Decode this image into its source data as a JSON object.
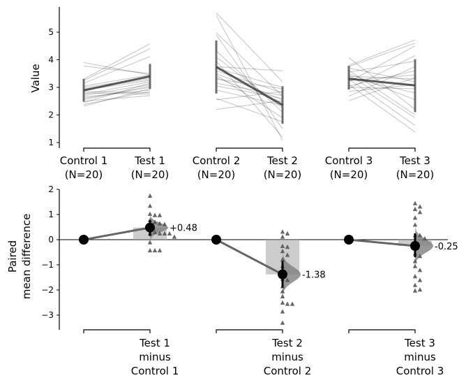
{
  "chart_data": [
    {
      "type": "line",
      "panel": "slopegraph",
      "title": "",
      "ylabel": "Value",
      "ylim": [
        0.85,
        5.9
      ],
      "yticks": [
        "1",
        "2",
        "3",
        "4",
        "5"
      ],
      "ytick_values": [
        1,
        2,
        3,
        4,
        5
      ],
      "groups": [
        {
          "control_label": "Control 1\n(N=20)",
          "test_label": "Test 1\n(N=20)",
          "control_name": "Control 1",
          "test_name": "Test 1",
          "n_label": "(N=20)",
          "control_mean": 2.89,
          "test_mean": 3.4,
          "control_ci": [
            2.48,
            3.31
          ],
          "test_ci": [
            2.94,
            3.85
          ],
          "pairs": [
            [
              3.9,
              3.45
            ],
            [
              3.77,
              3.5
            ],
            [
              3.3,
              4.58
            ],
            [
              3.25,
              4.4
            ],
            [
              3.15,
              4.12
            ],
            [
              3.05,
              3.45
            ],
            [
              3.0,
              3.35
            ],
            [
              2.95,
              3.3
            ],
            [
              2.9,
              3.25
            ],
            [
              2.85,
              2.8
            ],
            [
              2.8,
              2.75
            ],
            [
              2.75,
              3.2
            ],
            [
              2.7,
              3.1
            ],
            [
              2.65,
              2.9
            ],
            [
              2.6,
              3.0
            ],
            [
              2.55,
              3.05
            ],
            [
              2.5,
              2.7
            ],
            [
              2.45,
              3.15
            ],
            [
              2.38,
              2.85
            ],
            [
              2.32,
              2.95
            ]
          ]
        },
        {
          "control_label": "Control 2\n(N=20)",
          "test_label": "Test 2\n(N=20)",
          "control_name": "Control 2",
          "test_name": "Test 2",
          "n_label": "(N=20)",
          "control_mean": 3.74,
          "test_mean": 2.36,
          "control_ci": [
            2.78,
            4.7
          ],
          "test_ci": [
            1.68,
            3.04
          ],
          "pairs": [
            [
              5.7,
              3.2
            ],
            [
              5.62,
              1.08
            ],
            [
              4.98,
              2.68
            ],
            [
              4.9,
              1.5
            ],
            [
              4.32,
              2.1
            ],
            [
              4.1,
              2.25
            ],
            [
              3.95,
              1.2
            ],
            [
              3.75,
              3.6
            ],
            [
              3.7,
              3.0
            ],
            [
              3.6,
              2.8
            ],
            [
              3.5,
              2.55
            ],
            [
              3.45,
              1.9
            ],
            [
              3.35,
              2.45
            ],
            [
              3.3,
              2.95
            ],
            [
              3.15,
              2.7
            ],
            [
              3.05,
              2.6
            ],
            [
              2.9,
              2.35
            ],
            [
              2.6,
              1.75
            ],
            [
              2.55,
              2.85
            ],
            [
              2.2,
              2.52
            ]
          ]
        },
        {
          "control_label": "Control 3\n(N=20)",
          "test_label": "Test 3\n(N=20)",
          "control_name": "Control 3",
          "test_name": "Test 3",
          "n_label": "(N=20)",
          "control_mean": 3.31,
          "test_mean": 3.07,
          "control_ci": [
            2.92,
            3.78
          ],
          "test_ci": [
            2.1,
            4.02
          ],
          "pairs": [
            [
              4.08,
              2.2
            ],
            [
              3.8,
              4.72
            ],
            [
              3.75,
              4.6
            ],
            [
              3.7,
              3.2
            ],
            [
              3.62,
              2.0
            ],
            [
              3.55,
              3.95
            ],
            [
              3.5,
              2.55
            ],
            [
              3.45,
              1.9
            ],
            [
              3.4,
              3.3
            ],
            [
              3.35,
              2.8
            ],
            [
              3.3,
              1.62
            ],
            [
              3.25,
              3.45
            ],
            [
              3.2,
              4.5
            ],
            [
              3.1,
              1.38
            ],
            [
              3.05,
              3.6
            ],
            [
              3.0,
              2.95
            ],
            [
              2.95,
              4.15
            ],
            [
              2.85,
              3.1
            ],
            [
              2.68,
              3.75
            ],
            [
              2.52,
              3.35
            ]
          ]
        }
      ]
    },
    {
      "type": "scatter",
      "panel": "paired-mean-difference",
      "ylabel": "Paired\nmean difference",
      "ylabel_lines": [
        "Paired",
        "mean difference"
      ],
      "ylim": [
        -3.6,
        2.0
      ],
      "yticks": [
        "2",
        "1",
        "0",
        "−1",
        "−2",
        "−3"
      ],
      "ytick_values": [
        2,
        1,
        0,
        -1,
        -2,
        -3
      ],
      "groups": [
        {
          "label_lines": [
            "Test 1",
            "minus",
            "Control 1"
          ],
          "mean_diff": 0.48,
          "mean_diff_label": "+0.48",
          "ci": [
            0.15,
            0.78
          ],
          "bar_bottom": 0.0,
          "diffs": [
            1.75,
            1.35,
            0.98,
            0.98,
            1.03,
            0.78,
            0.65,
            0.62,
            0.7,
            0.45,
            0.25,
            0.25,
            0.25,
            0.25,
            0.3,
            0.12,
            -0.1,
            -0.42,
            -0.42,
            -0.42
          ]
        },
        {
          "label_lines": [
            "Test 2",
            "minus",
            "Control 2"
          ],
          "mean_diff": -1.38,
          "mean_diff_label": "-1.38",
          "ci": [
            -1.9,
            -0.85
          ],
          "bar_bottom": 0.0,
          "diffs": [
            0.32,
            0.25,
            0.12,
            -0.25,
            -0.28,
            -0.45,
            -0.6,
            -0.78,
            -1.05,
            -1.25,
            -1.55,
            -1.6,
            -1.85,
            -2.05,
            -2.25,
            -2.55,
            -2.55,
            -2.5,
            -2.85,
            -3.3
          ]
        },
        {
          "label_lines": [
            "Test 3",
            "minus",
            "Control 3"
          ],
          "mean_diff": -0.25,
          "mean_diff_label": "-0.25",
          "ci": [
            -0.7,
            0.25
          ],
          "bar_bottom": 0.0,
          "diffs": [
            1.45,
            1.32,
            1.22,
            1.1,
            0.88,
            0.6,
            0.18,
            0.05,
            -0.08,
            -0.55,
            -0.65,
            -0.85,
            -1.05,
            -1.2,
            -1.45,
            -1.6,
            -1.8,
            -1.98,
            -2.02,
            0.18
          ]
        }
      ]
    }
  ]
}
